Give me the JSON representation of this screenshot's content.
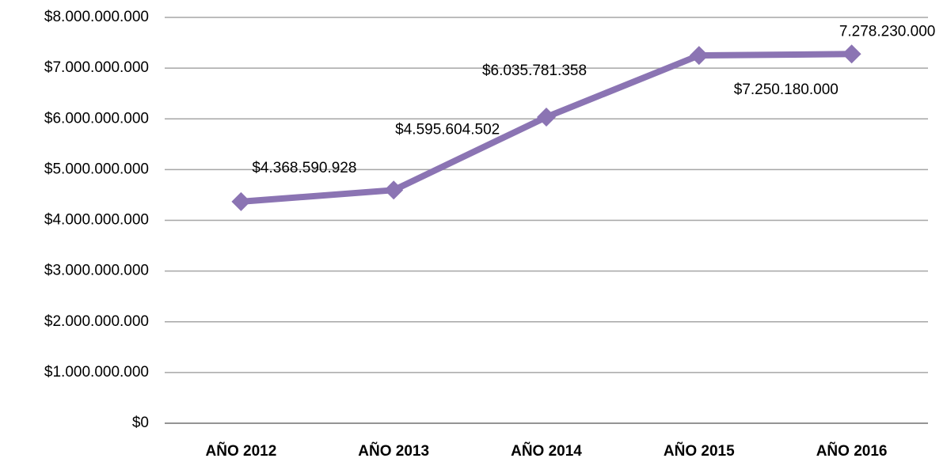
{
  "chart_data": {
    "type": "line",
    "categories": [
      "AÑO 2012",
      "AÑO 2013",
      "AÑO 2014",
      "AÑO 2015",
      "AÑO 2016"
    ],
    "series": [
      {
        "color": "#8b74b3",
        "values": [
          4368590928,
          4595604502,
          6035781358,
          7250180000,
          7278230000
        ],
        "value_labels": [
          "$4.368.590.928",
          "$4.595.604.502",
          "$6.035.781.358",
          "$7.250.180.000",
          "7.278.230.000"
        ]
      }
    ],
    "ylim": [
      0,
      8000000000
    ],
    "yticks": [
      {
        "value": 0,
        "label": "$0"
      },
      {
        "value": 1000000000,
        "label": "$1.000.000.000"
      },
      {
        "value": 2000000000,
        "label": "$2.000.000.000"
      },
      {
        "value": 3000000000,
        "label": "$3.000.000.000"
      },
      {
        "value": 4000000000,
        "label": "$4.000.000.000"
      },
      {
        "value": 5000000000,
        "label": "$5.000.000.000"
      },
      {
        "value": 6000000000,
        "label": "$6.000.000.000"
      },
      {
        "value": 7000000000,
        "label": "$7.000.000.000"
      },
      {
        "value": 8000000000,
        "label": "$8.000.000.000"
      }
    ],
    "grid": true
  }
}
